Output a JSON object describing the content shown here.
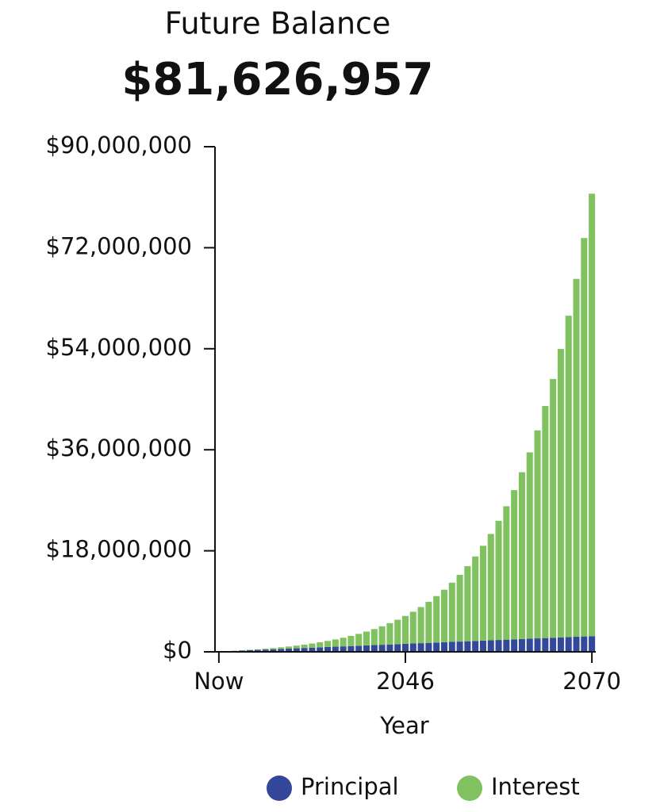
{
  "chart_data": {
    "type": "stacked_bar",
    "title": "Future Balance",
    "subtitle": "$81,626,957",
    "x_label": "Year",
    "categories": [
      "Now",
      null,
      null,
      null,
      null,
      null,
      null,
      null,
      null,
      null,
      null,
      null,
      null,
      null,
      null,
      null,
      null,
      null,
      null,
      null,
      null,
      null,
      null,
      null,
      "2046",
      null,
      null,
      null,
      null,
      null,
      null,
      null,
      null,
      null,
      null,
      null,
      null,
      null,
      null,
      null,
      null,
      null,
      null,
      null,
      null,
      null,
      null,
      null,
      "2070"
    ],
    "series": [
      {
        "name": "Principal",
        "color": "#34489a",
        "values": [
          57000,
          114000,
          171000,
          228000,
          285000,
          342000,
          399000,
          456000,
          513000,
          570000,
          627000,
          684000,
          741000,
          798000,
          855000,
          912000,
          969000,
          1026000,
          1083000,
          1140000,
          1197000,
          1254000,
          1311000,
          1368000,
          1425000,
          1482000,
          1539000,
          1596000,
          1653000,
          1710000,
          1767000,
          1824000,
          1881000,
          1938000,
          1995000,
          2052000,
          2109000,
          2166000,
          2223000,
          2280000,
          2337000,
          2394000,
          2451000,
          2508000,
          2565000,
          2622000,
          2679000,
          2736000,
          2793000
        ]
      },
      {
        "name": "Interest",
        "color": "#80c25f",
        "values": [
          0,
          6200,
          19300,
          40000,
          69100,
          107600,
          156500,
          216900,
          290000,
          377300,
          480300,
          600700,
          740300,
          901300,
          1086000,
          1297000,
          1537100,
          1809500,
          2117700,
          2465600,
          2857500,
          3298200,
          3793000,
          4347800,
          4969100,
          5664200,
          6441000,
          7308400,
          8276300,
          9355600,
          10558400,
          11898200,
          13389800,
          15049700,
          16896200,
          18949600,
          21232500,
          23769700,
          26589000,
          29720900,
          33199400,
          37062200,
          41351100,
          46112400,
          51397400,
          57263100,
          63772600,
          70995900,
          78833957
        ]
      }
    ],
    "ylim": [
      0,
      90000000
    ],
    "yticks": [
      {
        "value": 0,
        "label": "$0"
      },
      {
        "value": 18000000,
        "label": "$18,000,000"
      },
      {
        "value": 36000000,
        "label": "$36,000,000"
      },
      {
        "value": 54000000,
        "label": "$54,000,000"
      },
      {
        "value": 72000000,
        "label": "$72,000,000"
      },
      {
        "value": 90000000,
        "label": "$90,000,000"
      }
    ],
    "grid": false,
    "legend": "bottom"
  }
}
